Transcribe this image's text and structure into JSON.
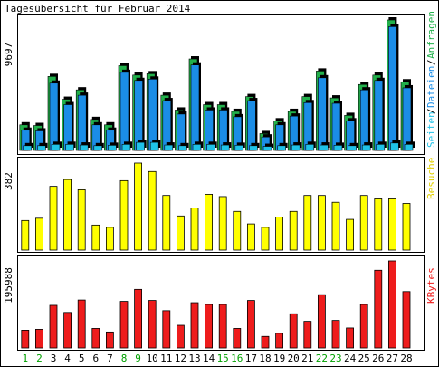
{
  "title": "Tagesübersicht für Februar 2014",
  "colors": {
    "background": "#ffffff",
    "frame": "#000000",
    "hits": "#22b04b",
    "files": "#1b8de6",
    "pages": "#1fc2e8",
    "visits": "#ffff00",
    "kbytes": "#ee1c1c",
    "weekday": "#000000",
    "weekend": "#00a000"
  },
  "chart_data": [
    {
      "type": "bar",
      "panel": "top",
      "max_label": "9697",
      "legend": [
        "Seiten",
        "Dateien",
        "Anfragen"
      ],
      "ylim": [
        0,
        9697
      ],
      "categories": [
        "1",
        "2",
        "3",
        "4",
        "5",
        "6",
        "7",
        "8",
        "9",
        "10",
        "11",
        "12",
        "13",
        "14",
        "15",
        "16",
        "17",
        "18",
        "19",
        "20",
        "21",
        "22",
        "23",
        "24",
        "25",
        "26",
        "27",
        "28"
      ],
      "series": [
        {
          "name": "Anfragen",
          "values": [
            1900,
            1850,
            5500,
            3800,
            4500,
            2300,
            1900,
            6300,
            5600,
            5700,
            4100,
            3000,
            6800,
            3400,
            3400,
            2900,
            4000,
            1250,
            2200,
            2900,
            4000,
            5900,
            3900,
            2600,
            4900,
            5600,
            9697,
            5100
          ]
        },
        {
          "name": "Dateien",
          "values": [
            1500,
            1450,
            5000,
            3400,
            4100,
            1900,
            1500,
            5800,
            5200,
            5300,
            3700,
            2700,
            6350,
            3000,
            3000,
            2500,
            3700,
            1000,
            1900,
            2550,
            3550,
            5400,
            3500,
            2200,
            4500,
            5200,
            9200,
            4650
          ]
        },
        {
          "name": "Seiten",
          "values": [
            350,
            350,
            450,
            450,
            400,
            350,
            380,
            450,
            600,
            600,
            400,
            350,
            450,
            450,
            400,
            380,
            350,
            300,
            350,
            400,
            450,
            400,
            380,
            350,
            400,
            450,
            550,
            450
          ]
        }
      ]
    },
    {
      "type": "bar",
      "panel": "middle",
      "max_label": "382",
      "legend": [
        "Besuche"
      ],
      "ylim": [
        0,
        382
      ],
      "categories": [
        "1",
        "2",
        "3",
        "4",
        "5",
        "6",
        "7",
        "8",
        "9",
        "10",
        "11",
        "12",
        "13",
        "14",
        "15",
        "16",
        "17",
        "18",
        "19",
        "20",
        "21",
        "22",
        "23",
        "24",
        "25",
        "26",
        "27",
        "28"
      ],
      "series": [
        {
          "name": "Besuche",
          "values": [
            130,
            140,
            280,
            310,
            265,
            110,
            100,
            305,
            382,
            345,
            240,
            150,
            185,
            245,
            235,
            170,
            115,
            100,
            145,
            170,
            240,
            240,
            210,
            135,
            240,
            225,
            225,
            205
          ]
        }
      ]
    },
    {
      "type": "bar",
      "panel": "bottom",
      "max_label": "195988",
      "legend": [
        "KBytes"
      ],
      "ylim": [
        0,
        195988
      ],
      "categories": [
        "1",
        "2",
        "3",
        "4",
        "5",
        "6",
        "7",
        "8",
        "9",
        "10",
        "11",
        "12",
        "13",
        "14",
        "15",
        "16",
        "17",
        "18",
        "19",
        "20",
        "21",
        "22",
        "23",
        "24",
        "25",
        "26",
        "27",
        "28"
      ],
      "series": [
        {
          "name": "KBytes",
          "values": [
            40000,
            42000,
            96000,
            80000,
            108000,
            44000,
            36000,
            105000,
            132000,
            107000,
            84000,
            51000,
            102000,
            98000,
            98000,
            44000,
            107000,
            26000,
            33000,
            77000,
            60000,
            120000,
            62000,
            45000,
            98000,
            175000,
            195988,
            127000
          ]
        }
      ]
    }
  ],
  "weekend_days": [
    "1",
    "2",
    "8",
    "9",
    "15",
    "16",
    "22",
    "23"
  ]
}
